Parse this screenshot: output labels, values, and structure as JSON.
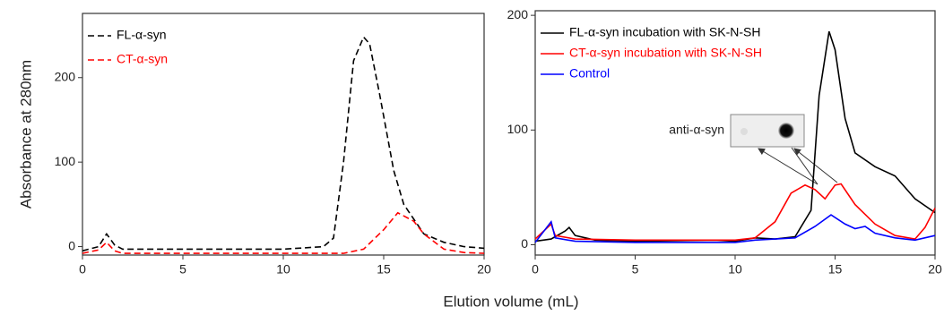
{
  "chart_data": [
    {
      "type": "line",
      "ylabel": "Absorbance at 280nm",
      "xlabel": "Elution volume (mL)",
      "xlim": [
        0,
        20
      ],
      "ylim": [
        -10,
        276
      ],
      "xticks": [
        0,
        5,
        10,
        15,
        20
      ],
      "yticks": [
        0,
        100,
        200
      ],
      "line_style": "dashed",
      "legend": "upper left",
      "series": [
        {
          "name": "FL-α-syn",
          "color": "#000000",
          "x": [
            0,
            0.8,
            1.2,
            1.6,
            2,
            5,
            10,
            12,
            12.5,
            13,
            13.5,
            14,
            14.3,
            14.8,
            15.5,
            16,
            17,
            18,
            19,
            20
          ],
          "values": [
            -5,
            0,
            15,
            2,
            -3,
            -3,
            -3,
            0,
            10,
            100,
            220,
            248,
            240,
            180,
            90,
            50,
            15,
            5,
            0,
            -2
          ]
        },
        {
          "name": "CT-α-syn",
          "color": "#ff0000",
          "x": [
            0,
            0.8,
            1.2,
            1.6,
            2,
            5,
            10,
            13,
            14,
            15,
            15.7,
            16.5,
            17,
            18,
            19,
            20
          ],
          "values": [
            -8,
            -4,
            5,
            -5,
            -8,
            -8,
            -8,
            -8,
            -3,
            20,
            40,
            30,
            15,
            -3,
            -7,
            -8
          ]
        }
      ]
    },
    {
      "type": "line",
      "xlim": [
        0,
        20
      ],
      "ylim": [
        -9,
        204
      ],
      "xticks": [
        0,
        5,
        10,
        15,
        20
      ],
      "yticks": [
        0,
        100,
        200
      ],
      "line_style": "solid",
      "legend": "upper left",
      "annotation": "anti-α-syn",
      "series": [
        {
          "name": "FL-α-syn incubation with SK-N-SH",
          "color": "#000000",
          "x": [
            0,
            0.8,
            1.5,
            1.7,
            2,
            3,
            5,
            9,
            10,
            11,
            12,
            13,
            13.8,
            14.2,
            14.7,
            15,
            15.5,
            16,
            17,
            18,
            19,
            20
          ],
          "values": [
            3,
            5,
            12,
            15,
            8,
            4,
            3,
            4,
            3,
            6,
            5,
            7,
            30,
            130,
            186,
            170,
            110,
            80,
            68,
            60,
            40,
            28
          ]
        },
        {
          "name": "CT-α-syn incubation with SK-N-SH",
          "color": "#ff0000",
          "x": [
            0,
            0.8,
            1,
            2,
            5,
            10,
            11,
            12,
            12.8,
            13.5,
            14,
            14.5,
            15,
            15.3,
            16,
            17,
            18,
            19,
            19.5,
            20
          ],
          "values": [
            5,
            18,
            8,
            5,
            4,
            4,
            6,
            20,
            45,
            52,
            48,
            40,
            52,
            53,
            35,
            18,
            8,
            5,
            15,
            32
          ]
        },
        {
          "name": "Control",
          "color": "#0000ff",
          "x": [
            0,
            0.8,
            1,
            2,
            5,
            10,
            11,
            13,
            14,
            14.8,
            15.5,
            16,
            16.5,
            17,
            18,
            19,
            20
          ],
          "values": [
            2,
            20,
            6,
            3,
            2,
            2,
            4,
            6,
            16,
            26,
            18,
            14,
            16,
            10,
            6,
            4,
            8
          ]
        }
      ]
    }
  ]
}
